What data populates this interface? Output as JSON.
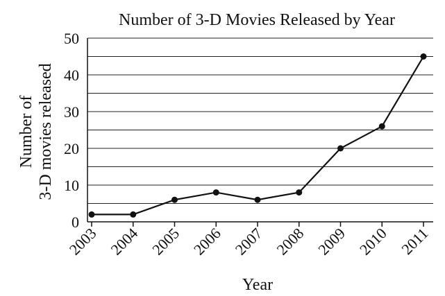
{
  "chart_data": {
    "type": "line",
    "title": "Number of 3-D Movies Released by Year",
    "xlabel": "Year",
    "ylabel_lines": [
      "Number of",
      "3-D movies released"
    ],
    "categories": [
      "2003",
      "2004",
      "2005",
      "2006",
      "2007",
      "2008",
      "2009",
      "2010",
      "2011"
    ],
    "values": [
      2,
      2,
      6,
      8,
      6,
      8,
      20,
      26,
      45
    ],
    "ylim": [
      0,
      50
    ],
    "y_major_ticks": [
      0,
      10,
      20,
      30,
      40,
      50
    ],
    "y_minor_gridlines": [
      5,
      15,
      25,
      35,
      45
    ],
    "grid": true,
    "colors": {
      "line": "#111111",
      "grid": "#222222"
    }
  }
}
